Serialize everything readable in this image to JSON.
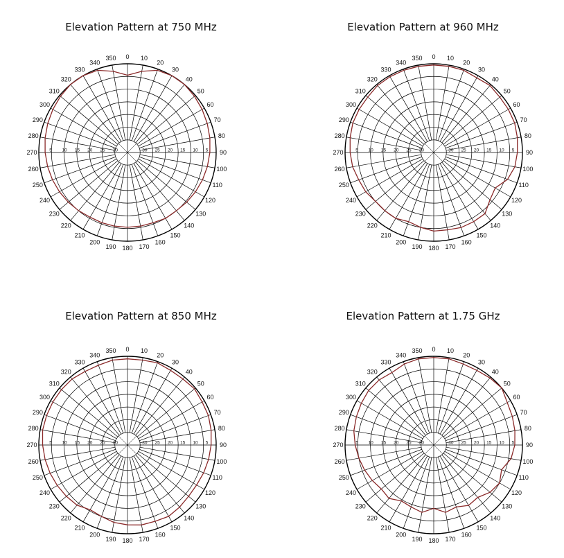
{
  "chart_data": [
    {
      "type": "polar-line",
      "title": "Elevation Pattern at 750 MHz",
      "angle_labels": [
        "0",
        "10",
        "20",
        "30",
        "40",
        "50",
        "60",
        "70",
        "80",
        "90",
        "100",
        "110",
        "120",
        "130",
        "140",
        "150",
        "160",
        "170",
        "180",
        "190",
        "200",
        "210",
        "220",
        "230",
        "240",
        "250",
        "260",
        "270",
        "280",
        "290",
        "300",
        "310",
        "320",
        "330",
        "340",
        "350"
      ],
      "ring_labels": [
        "5",
        "10",
        "15",
        "20",
        "25",
        "30"
      ],
      "series_color": "#8b2a2a",
      "series": [
        {
          "angles": [
            0,
            10,
            20,
            30,
            40,
            50,
            60,
            70,
            80,
            90,
            100,
            110,
            120,
            130,
            140,
            150,
            160,
            170,
            180,
            190,
            200,
            210,
            220,
            230,
            240,
            250,
            260,
            270,
            280,
            290,
            300,
            310,
            320,
            330,
            340,
            350
          ],
          "values": [
            -4.5,
            -2.5,
            -0.5,
            0,
            0,
            -0.5,
            -1,
            -1.5,
            -2,
            -2.5,
            -3,
            -3.5,
            -4,
            -4.5,
            -5,
            -5,
            -5.5,
            -5.5,
            -5.5,
            -5.5,
            -5.5,
            -5.5,
            -5,
            -4.5,
            -4,
            -3.5,
            -3,
            -2.5,
            -2,
            -1.5,
            -1,
            -0.5,
            0,
            0,
            -0.5,
            -2.5
          ]
        }
      ]
    },
    {
      "type": "polar-line",
      "title": "Elevation Pattern at 960 MHz",
      "angle_labels": [
        "0",
        "10",
        "20",
        "30",
        "40",
        "50",
        "60",
        "70",
        "80",
        "90",
        "100",
        "110",
        "120",
        "130",
        "140",
        "150",
        "160",
        "170",
        "180",
        "190",
        "200",
        "210",
        "220",
        "230",
        "240",
        "250",
        "260",
        "270",
        "280",
        "290",
        "300",
        "310",
        "320",
        "330",
        "340",
        "350"
      ],
      "ring_labels": [
        "5",
        "10",
        "15",
        "20",
        "25",
        "30"
      ],
      "series_color": "#8b2a2a",
      "series": [
        {
          "angles": [
            0,
            10,
            20,
            30,
            40,
            50,
            60,
            70,
            80,
            90,
            100,
            110,
            120,
            130,
            140,
            150,
            160,
            170,
            180,
            190,
            200,
            210,
            220,
            230,
            240,
            250,
            260,
            270,
            280,
            290,
            300,
            310,
            320,
            330,
            340,
            350
          ],
          "values": [
            -0.5,
            -0.5,
            -0.5,
            -1,
            -0.5,
            -1,
            -1,
            -1,
            -1.5,
            -2,
            -2.5,
            -4,
            -7,
            -6,
            -3.5,
            -3.5,
            -3.5,
            -4,
            -4,
            -5,
            -6,
            -5,
            -5,
            -5,
            -4,
            -3.5,
            -2.5,
            -2,
            -1.5,
            -1,
            -1,
            -1,
            -0.5,
            -0.5,
            -0.5,
            -0.5
          ]
        }
      ]
    },
    {
      "type": "polar-line",
      "title": "Elevation Pattern at 850 MHz",
      "angle_labels": [
        "0",
        "10",
        "20",
        "30",
        "40",
        "50",
        "60",
        "70",
        "80",
        "90",
        "100",
        "110",
        "120",
        "130",
        "140",
        "150",
        "160",
        "170",
        "180",
        "190",
        "200",
        "210",
        "220",
        "230",
        "240",
        "250",
        "260",
        "270",
        "280",
        "290",
        "300",
        "310",
        "320",
        "330",
        "340",
        "350"
      ],
      "ring_labels": [
        "5",
        "10",
        "15",
        "20",
        "25",
        "30"
      ],
      "series_color": "#8b2a2a",
      "series": [
        {
          "angles": [
            0,
            10,
            20,
            30,
            40,
            50,
            60,
            70,
            80,
            90,
            100,
            110,
            120,
            130,
            140,
            150,
            160,
            170,
            180,
            190,
            200,
            210,
            220,
            230,
            240,
            250,
            260,
            270,
            280,
            290,
            300,
            310,
            320,
            330,
            340,
            350
          ],
          "values": [
            -1,
            -1,
            -0.5,
            -1,
            -1,
            -0.5,
            -1,
            -1,
            -1.5,
            -2,
            -2.5,
            -3,
            -3.5,
            -3.5,
            -3,
            -2.5,
            -3,
            -3,
            -3.5,
            -4,
            -5,
            -5.5,
            -4,
            -3.5,
            -3,
            -2.5,
            -2,
            -1.5,
            -1,
            -1,
            -1,
            -1,
            -1,
            -1.5,
            -1.5,
            -1
          ]
        }
      ]
    },
    {
      "type": "polar-line",
      "title": "Elevation Pattern at 1.75 GHz",
      "angle_labels": [
        "0",
        "10",
        "20",
        "30",
        "40",
        "50",
        "60",
        "70",
        "80",
        "90",
        "100",
        "110",
        "120",
        "130",
        "140",
        "150",
        "160",
        "170",
        "180",
        "190",
        "200",
        "210",
        "220",
        "230",
        "240",
        "250",
        "260",
        "270",
        "280",
        "290",
        "300",
        "310",
        "320",
        "330",
        "340",
        "350"
      ],
      "ring_labels": [
        "5",
        "10",
        "15",
        "20",
        "25",
        "30"
      ],
      "series_color": "#8b2a2a",
      "series": [
        {
          "angles": [
            0,
            10,
            20,
            30,
            40,
            50,
            60,
            70,
            80,
            90,
            100,
            110,
            120,
            130,
            140,
            150,
            160,
            170,
            180,
            190,
            200,
            210,
            220,
            230,
            240,
            250,
            260,
            270,
            280,
            290,
            300,
            310,
            320,
            330,
            340,
            350
          ],
          "values": [
            -0.5,
            -0.5,
            -1,
            -1,
            -0.5,
            0,
            -1.5,
            -2,
            -2.5,
            -3,
            -4,
            -6.5,
            -5,
            -6,
            -8,
            -7.5,
            -9,
            -8,
            -10,
            -8,
            -9,
            -9.5,
            -7.5,
            -8,
            -7,
            -6,
            -5,
            -4,
            -3,
            -2.5,
            -2,
            -1.5,
            -1.5,
            -2,
            -1,
            -0.5
          ]
        }
      ]
    }
  ]
}
